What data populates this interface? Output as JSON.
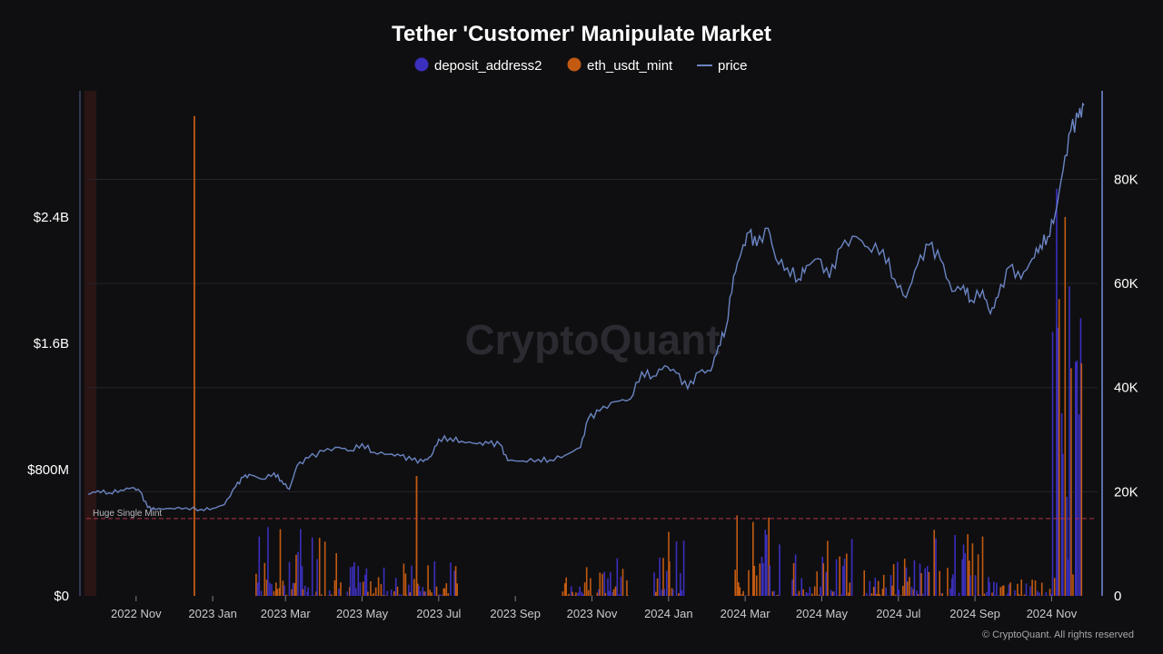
{
  "chart_data": {
    "type": "bar+line",
    "title": "Tether 'Customer' Manipulate Market",
    "legend": [
      {
        "name": "deposit_address2",
        "color": "#3b2fbd",
        "marker": "circle"
      },
      {
        "name": "eth_usdt_mint",
        "color": "#c25a12",
        "marker": "circle"
      },
      {
        "name": "price",
        "color": "#6b84c2",
        "marker": "line"
      }
    ],
    "left_axis": {
      "ticks": [
        "$0",
        "$800M",
        "$1.6B",
        "$2.4B"
      ],
      "values": [
        0,
        800,
        1600,
        2400
      ],
      "range": [
        0,
        3200
      ]
    },
    "right_axis": {
      "ticks": [
        "0",
        "20K",
        "40K",
        "60K",
        "80K"
      ],
      "values": [
        0,
        20000,
        40000,
        60000,
        80000
      ],
      "range": [
        0,
        97000
      ]
    },
    "x_ticks": [
      {
        "label": "2022 Nov",
        "m": 1.3
      },
      {
        "label": "2023 Jan",
        "m": 3.3
      },
      {
        "label": "2023 Mar",
        "m": 5.2
      },
      {
        "label": "2023 May",
        "m": 7.2
      },
      {
        "label": "2023 Jul",
        "m": 9.2
      },
      {
        "label": "2023 Sep",
        "m": 11.2
      },
      {
        "label": "2023 Nov",
        "m": 13.2
      },
      {
        "label": "2024 Jan",
        "m": 15.2
      },
      {
        "label": "2024 Mar",
        "m": 17.2
      },
      {
        "label": "2024 May",
        "m": 19.2
      },
      {
        "label": "2024 Jul",
        "m": 21.2
      },
      {
        "label": "2024 Sep",
        "m": 23.2
      },
      {
        "label": "2024 Nov",
        "m": 25.2
      }
    ],
    "x_range_months": [
      0,
      26.4
    ],
    "threshold": {
      "label": "Huge Single Mint",
      "value": 490
    },
    "price_series": [
      [
        0.05,
        19500
      ],
      [
        0.3,
        20200
      ],
      [
        0.6,
        19800
      ],
      [
        0.9,
        20300
      ],
      [
        1.2,
        20800
      ],
      [
        1.4,
        20100
      ],
      [
        1.6,
        17000
      ],
      [
        1.8,
        16600
      ],
      [
        2.2,
        16800
      ],
      [
        2.6,
        16900
      ],
      [
        3.0,
        16600
      ],
      [
        3.3,
        16800
      ],
      [
        3.6,
        17500
      ],
      [
        3.9,
        21000
      ],
      [
        4.1,
        22800
      ],
      [
        4.3,
        23200
      ],
      [
        4.6,
        22400
      ],
      [
        4.9,
        23600
      ],
      [
        5.1,
        22100
      ],
      [
        5.3,
        20500
      ],
      [
        5.5,
        25000
      ],
      [
        5.8,
        26500
      ],
      [
        6.2,
        27800
      ],
      [
        6.6,
        28500
      ],
      [
        6.9,
        27900
      ],
      [
        7.2,
        29200
      ],
      [
        7.5,
        27600
      ],
      [
        7.9,
        27200
      ],
      [
        8.2,
        26900
      ],
      [
        8.5,
        26100
      ],
      [
        8.8,
        25800
      ],
      [
        9.0,
        26800
      ],
      [
        9.2,
        30100
      ],
      [
        9.5,
        30300
      ],
      [
        9.8,
        29700
      ],
      [
        10.2,
        29200
      ],
      [
        10.5,
        29300
      ],
      [
        10.8,
        29100
      ],
      [
        11.0,
        26000
      ],
      [
        11.4,
        25900
      ],
      [
        11.8,
        26200
      ],
      [
        12.1,
        26100
      ],
      [
        12.5,
        27000
      ],
      [
        12.9,
        28500
      ],
      [
        13.1,
        34000
      ],
      [
        13.4,
        35500
      ],
      [
        13.8,
        37300
      ],
      [
        14.2,
        37800
      ],
      [
        14.5,
        43000
      ],
      [
        14.8,
        42200
      ],
      [
        15.1,
        44200
      ],
      [
        15.4,
        42800
      ],
      [
        15.7,
        39800
      ],
      [
        16.0,
        43000
      ],
      [
        16.3,
        43200
      ],
      [
        16.5,
        48000
      ],
      [
        16.7,
        51500
      ],
      [
        16.9,
        61500
      ],
      [
        17.1,
        66000
      ],
      [
        17.3,
        69800
      ],
      [
        17.5,
        67200
      ],
      [
        17.8,
        70600
      ],
      [
        18.0,
        64700
      ],
      [
        18.3,
        63000
      ],
      [
        18.6,
        60900
      ],
      [
        18.8,
        63400
      ],
      [
        19.1,
        64800
      ],
      [
        19.4,
        61100
      ],
      [
        19.7,
        66900
      ],
      [
        20.1,
        69000
      ],
      [
        20.4,
        67000
      ],
      [
        20.8,
        66500
      ],
      [
        21.1,
        60800
      ],
      [
        21.4,
        57300
      ],
      [
        21.7,
        63600
      ],
      [
        22.0,
        67400
      ],
      [
        22.3,
        64600
      ],
      [
        22.6,
        58500
      ],
      [
        22.9,
        59600
      ],
      [
        23.1,
        56800
      ],
      [
        23.4,
        58700
      ],
      [
        23.6,
        54200
      ],
      [
        23.8,
        57400
      ],
      [
        24.1,
        63200
      ],
      [
        24.4,
        60900
      ],
      [
        24.7,
        64800
      ],
      [
        24.9,
        67400
      ],
      [
        25.1,
        69000
      ],
      [
        25.3,
        73500
      ],
      [
        25.5,
        81800
      ],
      [
        25.7,
        89400
      ],
      [
        25.9,
        91800
      ],
      [
        26.05,
        94200
      ]
    ],
    "bar_clusters": [
      {
        "start": 4.4,
        "end": 6.6,
        "peak": 500
      },
      {
        "start": 6.6,
        "end": 9.7,
        "peak": 230
      },
      {
        "start": 12.4,
        "end": 14.2,
        "peak": 250
      },
      {
        "start": 14.8,
        "end": 15.6,
        "peak": 520
      },
      {
        "start": 16.9,
        "end": 18.1,
        "peak": 520
      },
      {
        "start": 18.4,
        "end": 20.0,
        "peak": 410
      },
      {
        "start": 20.2,
        "end": 22.0,
        "peak": 270
      },
      {
        "start": 22.1,
        "end": 23.6,
        "peak": 430
      },
      {
        "start": 23.6,
        "end": 25.2,
        "peak": 110
      },
      {
        "start": 25.2,
        "end": 26.0,
        "peak": 2700
      }
    ],
    "bar_spikes": [
      {
        "m": 2.8,
        "value": 3040,
        "series": "eth_usdt_mint"
      },
      {
        "m": 8.6,
        "value": 760,
        "series": "eth_usdt_mint"
      }
    ],
    "watermark": "CryptoQuant",
    "copyright": "© CryptoQuant. All rights reserved"
  }
}
